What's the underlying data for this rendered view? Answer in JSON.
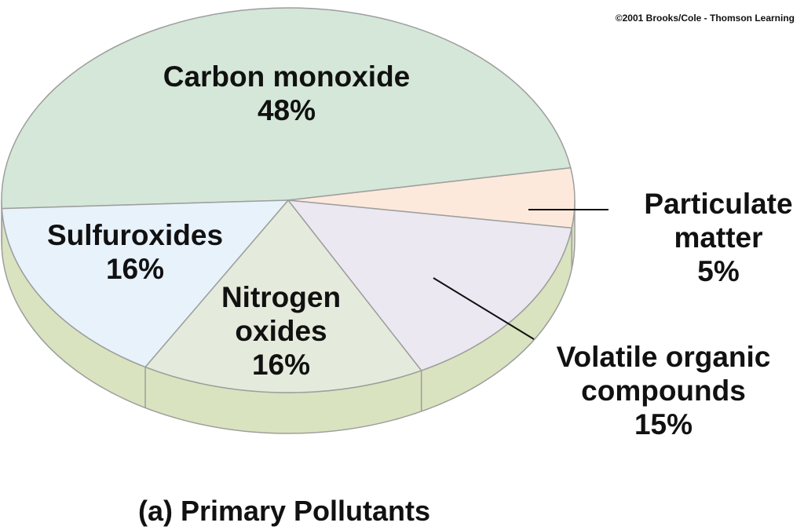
{
  "copyright": "©2001 Brooks/Cole - Thomson Learning",
  "caption": "(a) Primary Pollutants",
  "colors": {
    "carbon_monoxide": "#d4e7d8",
    "particulate_matter": "#fde9dc",
    "volatile_organic": "#ece8f1",
    "nitrogen_oxides": "#e5ebdc",
    "sulfuroxides": "#e8f2fb",
    "side_wall": "#d9e3bf",
    "edge": "#9e9e9e"
  },
  "chart_data": {
    "type": "pie",
    "title": "(a) Primary Pollutants",
    "slices": [
      {
        "id": "carbon_monoxide",
        "label": [
          "Carbon monoxide"
        ],
        "value": 48,
        "value_label": "48%"
      },
      {
        "id": "particulate_matter",
        "label": [
          "Particulate",
          "matter"
        ],
        "value": 5,
        "value_label": "5%"
      },
      {
        "id": "volatile_organic",
        "label": [
          "Volatile organic",
          "compounds"
        ],
        "value": 15,
        "value_label": "15%"
      },
      {
        "id": "nitrogen_oxides",
        "label": [
          "Nitrogen",
          "oxides"
        ],
        "value": 16,
        "value_label": "16%"
      },
      {
        "id": "sulfuroxides",
        "label": [
          "Sulfuroxides"
        ],
        "value": 16,
        "value_label": "16%"
      }
    ]
  }
}
